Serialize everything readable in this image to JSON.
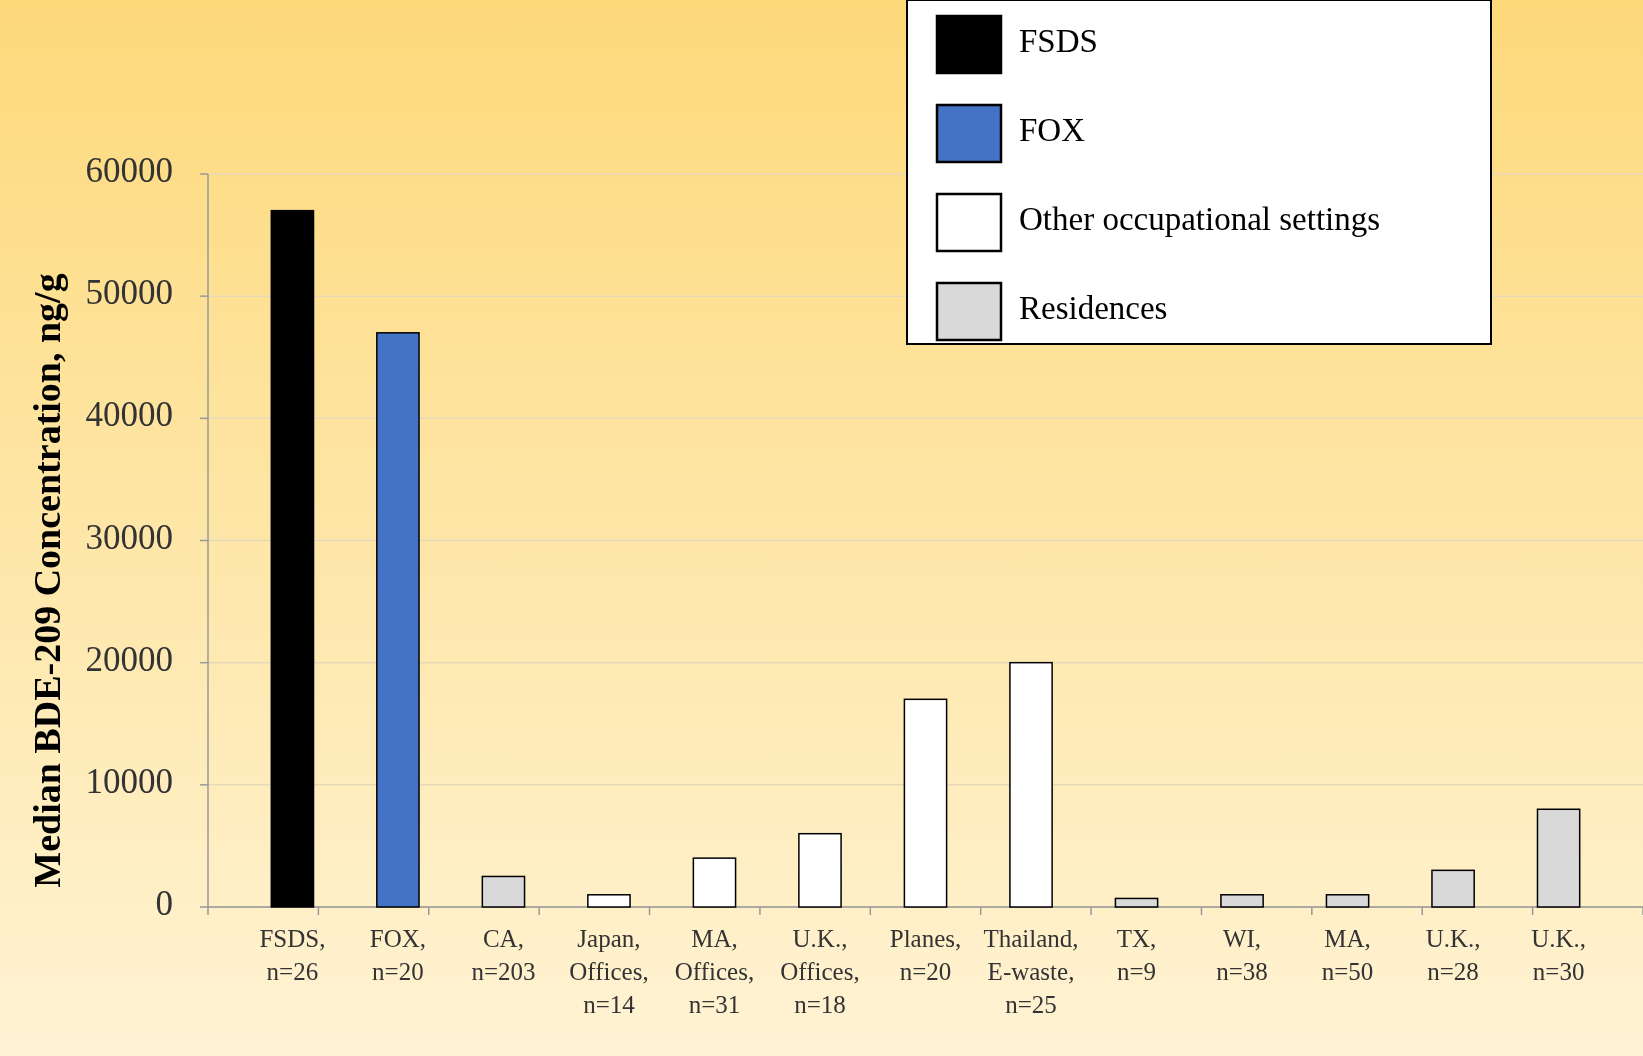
{
  "chart_data": {
    "type": "bar",
    "ylabel": "Median BDE-209 Concentration, ng/g",
    "categories": [
      "FSDS,\nn=26",
      "FOX,\nn=20",
      "CA,\nn=203",
      "Japan,\nOffices,\nn=14",
      "MA,\nOffices,\nn=31",
      "U.K.,\nOffices,\nn=18",
      "Planes,\nn=20",
      "Thailand,\nE-waste,\nn=25",
      "TX,\nn=9",
      "WI,\nn=38",
      "MA,\nn=50",
      "U.K.,\nn=28",
      "U.K.,\nn=30"
    ],
    "stacked": true,
    "series": [
      {
        "name": "FSDS",
        "color": "#000000",
        "values": [
          57000,
          null,
          null,
          null,
          null,
          null,
          null,
          null,
          null,
          null,
          null,
          null,
          null
        ]
      },
      {
        "name": "FOX",
        "color": "#4472c4",
        "values": [
          null,
          47000,
          null,
          null,
          null,
          null,
          null,
          null,
          null,
          null,
          null,
          null,
          null
        ]
      },
      {
        "name": "Other occupational settings",
        "color": "#ffffff",
        "values": [
          null,
          null,
          null,
          1000,
          4000,
          6000,
          17000,
          20000,
          null,
          null,
          null,
          null,
          null
        ]
      },
      {
        "name": "Residences",
        "color": "#d9d9d9",
        "values": [
          null,
          null,
          2500,
          null,
          null,
          null,
          null,
          null,
          700,
          1000,
          1000,
          3000,
          8000
        ]
      }
    ],
    "ylim": [
      0,
      60000
    ],
    "yticks": [
      0,
      10000,
      20000,
      30000,
      40000,
      50000,
      60000
    ],
    "grid": "y",
    "legend": "top right"
  }
}
